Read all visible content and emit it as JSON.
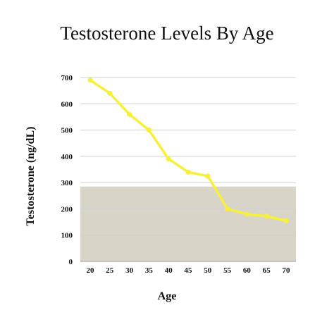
{
  "chart_data": {
    "type": "line",
    "title": "Testosterone Levels By Age",
    "xlabel": "Age",
    "ylabel": "Testosterone (ng/dL)",
    "x": [
      20,
      25,
      30,
      35,
      40,
      45,
      50,
      55,
      60,
      65,
      70
    ],
    "categories": [
      "20",
      "25",
      "30",
      "35",
      "40",
      "45",
      "50",
      "55",
      "60",
      "65",
      "70"
    ],
    "series": [
      {
        "values": [
          690,
          640,
          560,
          500,
          390,
          340,
          325,
          200,
          180,
          172,
          155
        ]
      }
    ],
    "ylim": [
      0,
      700
    ],
    "yticks": [
      0,
      100,
      200,
      300,
      400,
      500,
      600,
      700
    ],
    "shaded_band": {
      "from": 0,
      "to": 285
    },
    "grid": true,
    "colors": {
      "line": "#f6f03a",
      "marker": "#f6f03a",
      "band": "#d8d5c8",
      "grid": "#cfcfcf",
      "text": "#111111"
    }
  }
}
